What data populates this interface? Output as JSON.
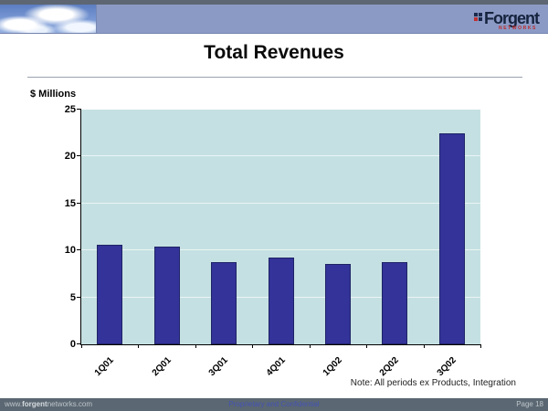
{
  "banner": {
    "logo_text": "Forgent",
    "logo_sub": "NETWORKS"
  },
  "title": "Total Revenues",
  "chart_data": {
    "type": "bar",
    "title": "Total Revenues",
    "categories": [
      "1Q01",
      "2Q01",
      "3Q01",
      "4Q01",
      "1Q02",
      "2Q02",
      "3Q02"
    ],
    "values": [
      10.4,
      10.2,
      8.6,
      9.0,
      8.4,
      8.6,
      22.3
    ],
    "xlabel": "",
    "ylabel": "$ Millions",
    "ylim": [
      0,
      25
    ],
    "yticks": [
      0,
      5,
      10,
      15,
      20,
      25
    ],
    "grid": true,
    "legend": "none",
    "note": "Note: All periods ex Products, Integration",
    "bar_color": "#333399",
    "bar_border": "#1f2366",
    "plot_bg": "#c5e0e2",
    "grid_color": "#e9f5f4"
  },
  "footer": {
    "left_prefix": "www.",
    "left_brand": "forgent",
    "left_suffix": "networks.com",
    "center": "Proprietary and Confidential",
    "right": "Page 18"
  }
}
